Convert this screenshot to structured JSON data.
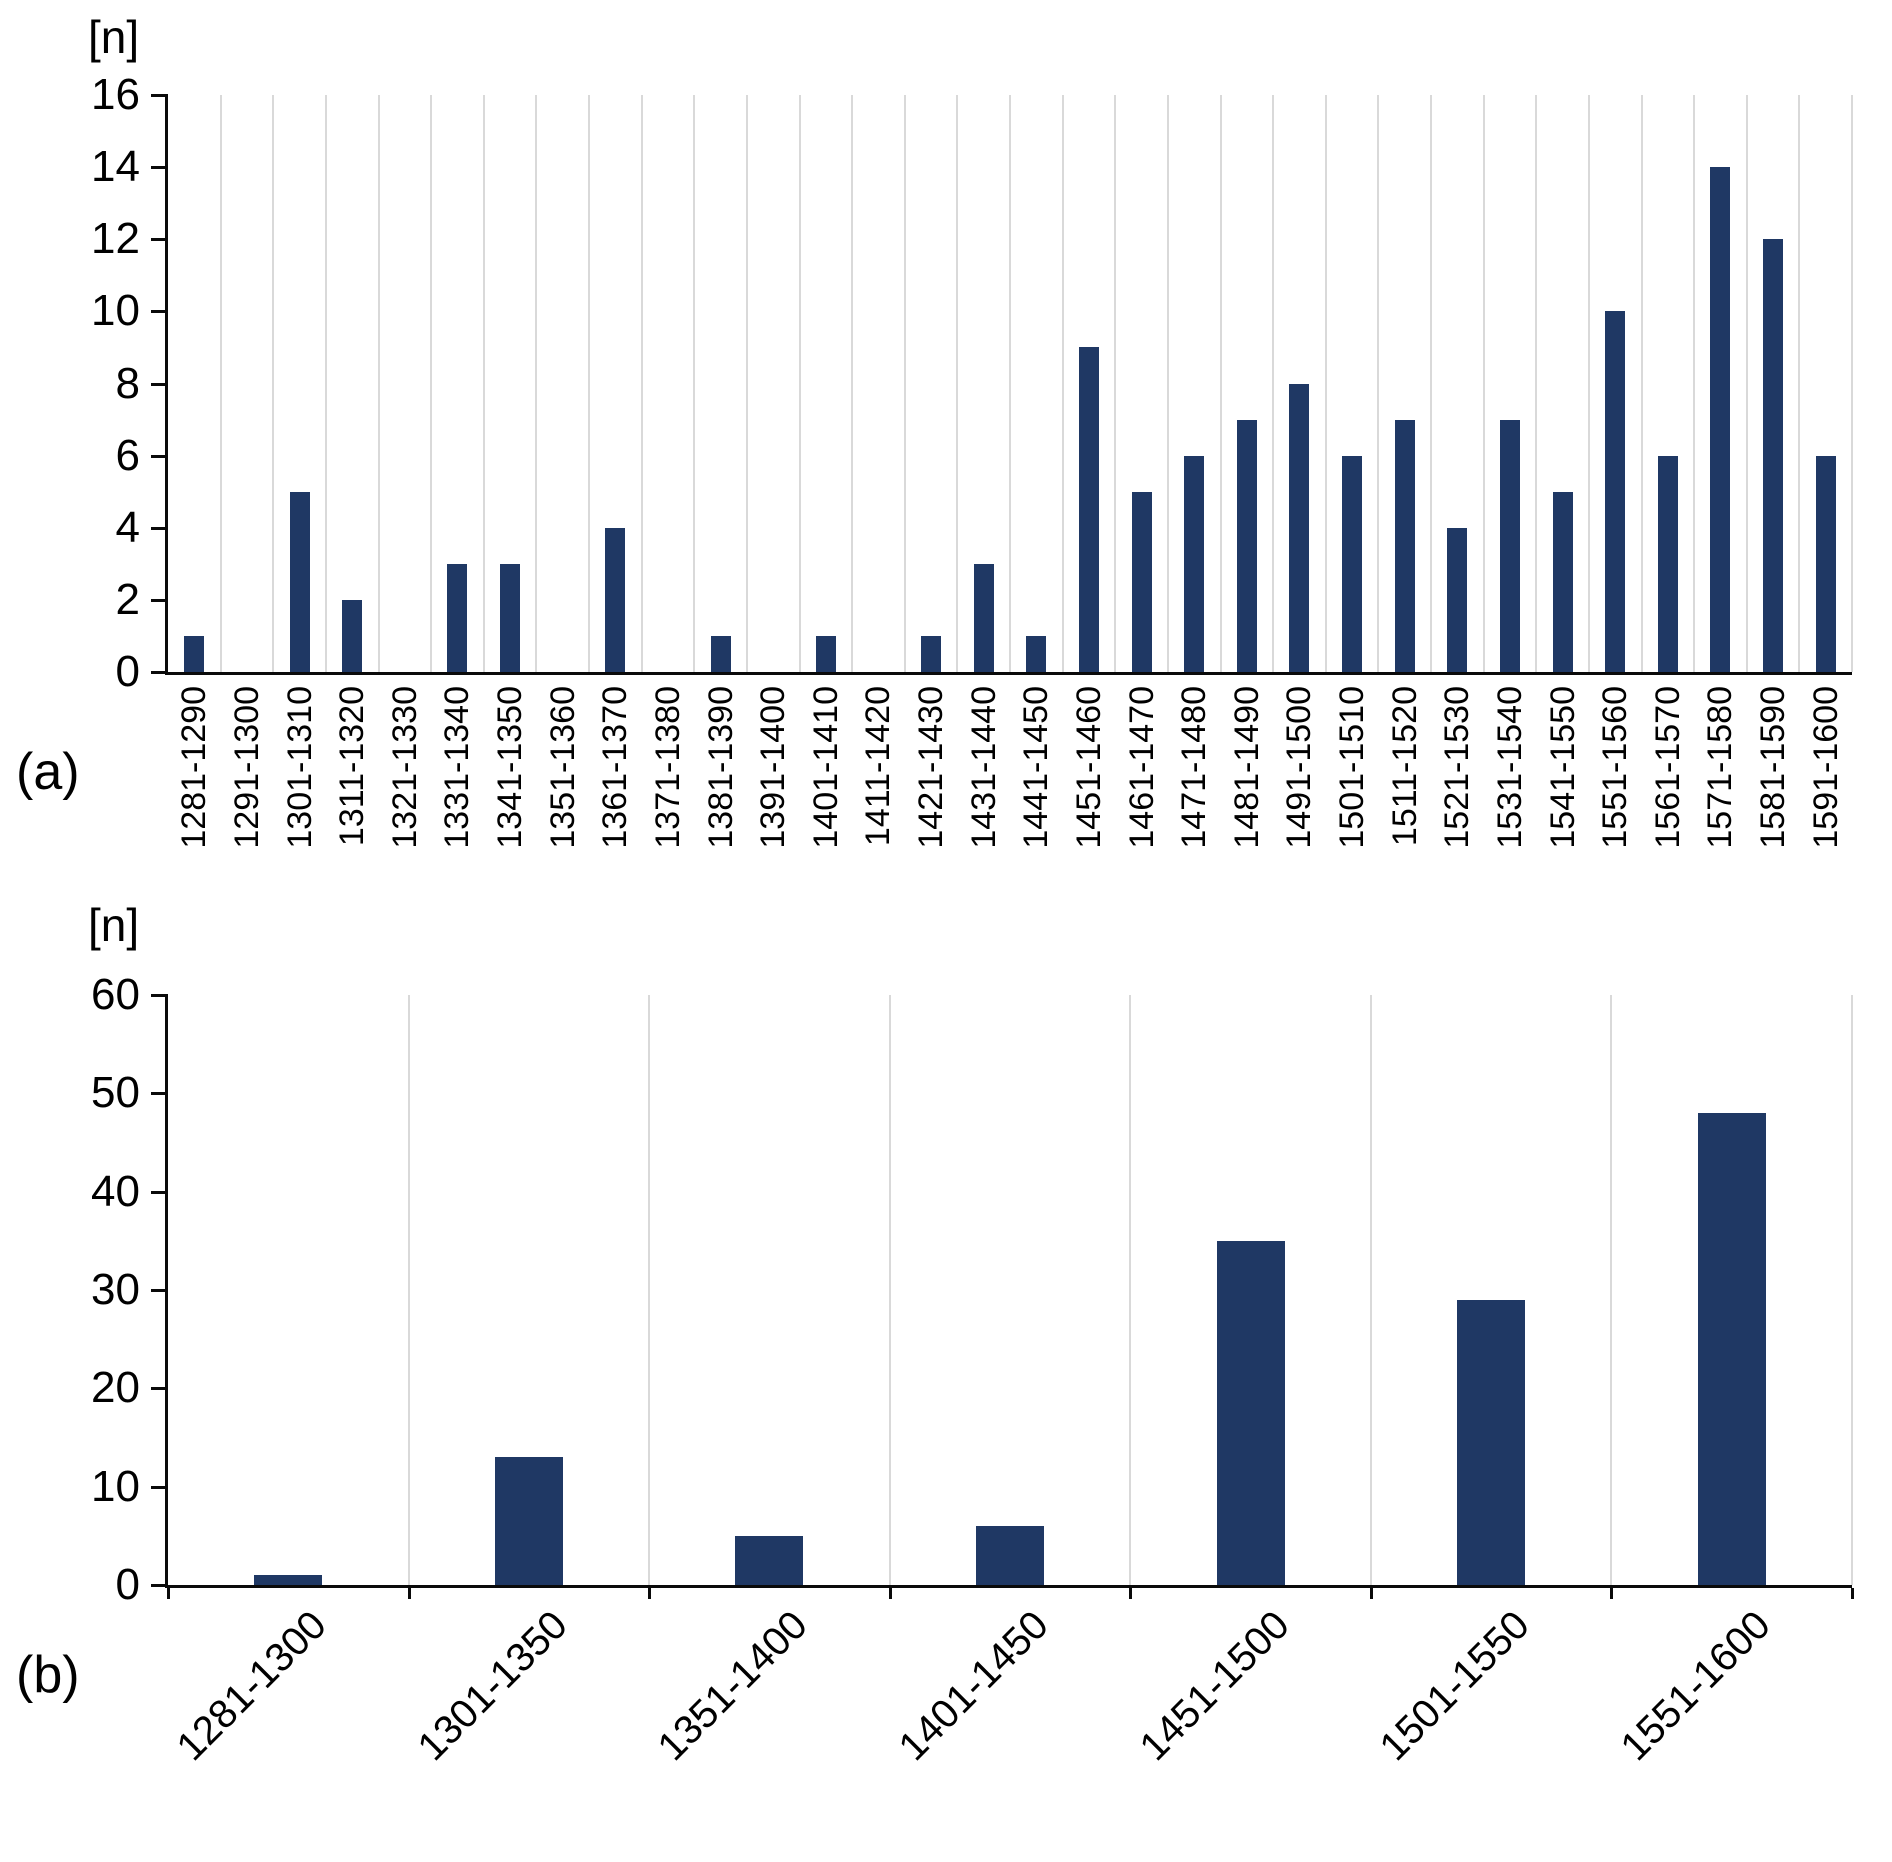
{
  "chart_data": [
    {
      "id": "a",
      "type": "bar",
      "panel_label": "(a)",
      "y_unit_label": "[n]",
      "title": "",
      "xlabel": "",
      "ylabel": "[n]",
      "bar_color": "#1f3864",
      "gridlines": "vertical-category-boundaries",
      "legend": "none",
      "ylim": [
        0,
        16
      ],
      "y_ticks": [
        0,
        2,
        4,
        6,
        8,
        10,
        12,
        14,
        16
      ],
      "categories": [
        "1281-1290",
        "1291-1300",
        "1301-1310",
        "1311-1320",
        "1321-1330",
        "1331-1340",
        "1341-1350",
        "1351-1360",
        "1361-1370",
        "1371-1380",
        "1381-1390",
        "1391-1400",
        "1401-1410",
        "1411-1420",
        "1421-1430",
        "1431-1440",
        "1441-1450",
        "1451-1460",
        "1461-1470",
        "1471-1480",
        "1481-1490",
        "1491-1500",
        "1501-1510",
        "1511-1520",
        "1521-1530",
        "1531-1540",
        "1541-1550",
        "1551-1560",
        "1561-1570",
        "1571-1580",
        "1581-1590",
        "1591-1600"
      ],
      "values": [
        1,
        0,
        5,
        2,
        0,
        3,
        3,
        0,
        4,
        0,
        1,
        0,
        1,
        0,
        1,
        3,
        1,
        9,
        5,
        6,
        7,
        8,
        6,
        7,
        4,
        7,
        5,
        10,
        6,
        14,
        12,
        6
      ]
    },
    {
      "id": "b",
      "type": "bar",
      "panel_label": "(b)",
      "y_unit_label": "[n]",
      "title": "",
      "xlabel": "",
      "ylabel": "[n]",
      "bar_color": "#1f3864",
      "gridlines": "vertical-category-boundaries",
      "legend": "none",
      "ylim": [
        0,
        60
      ],
      "y_ticks": [
        0,
        10,
        20,
        30,
        40,
        50,
        60
      ],
      "categories": [
        "1281-1300",
        "1301-1350",
        "1351-1400",
        "1401-1450",
        "1451-1500",
        "1501-1550",
        "1551-1600"
      ],
      "values": [
        1,
        13,
        5,
        6,
        35,
        29,
        48
      ]
    }
  ]
}
